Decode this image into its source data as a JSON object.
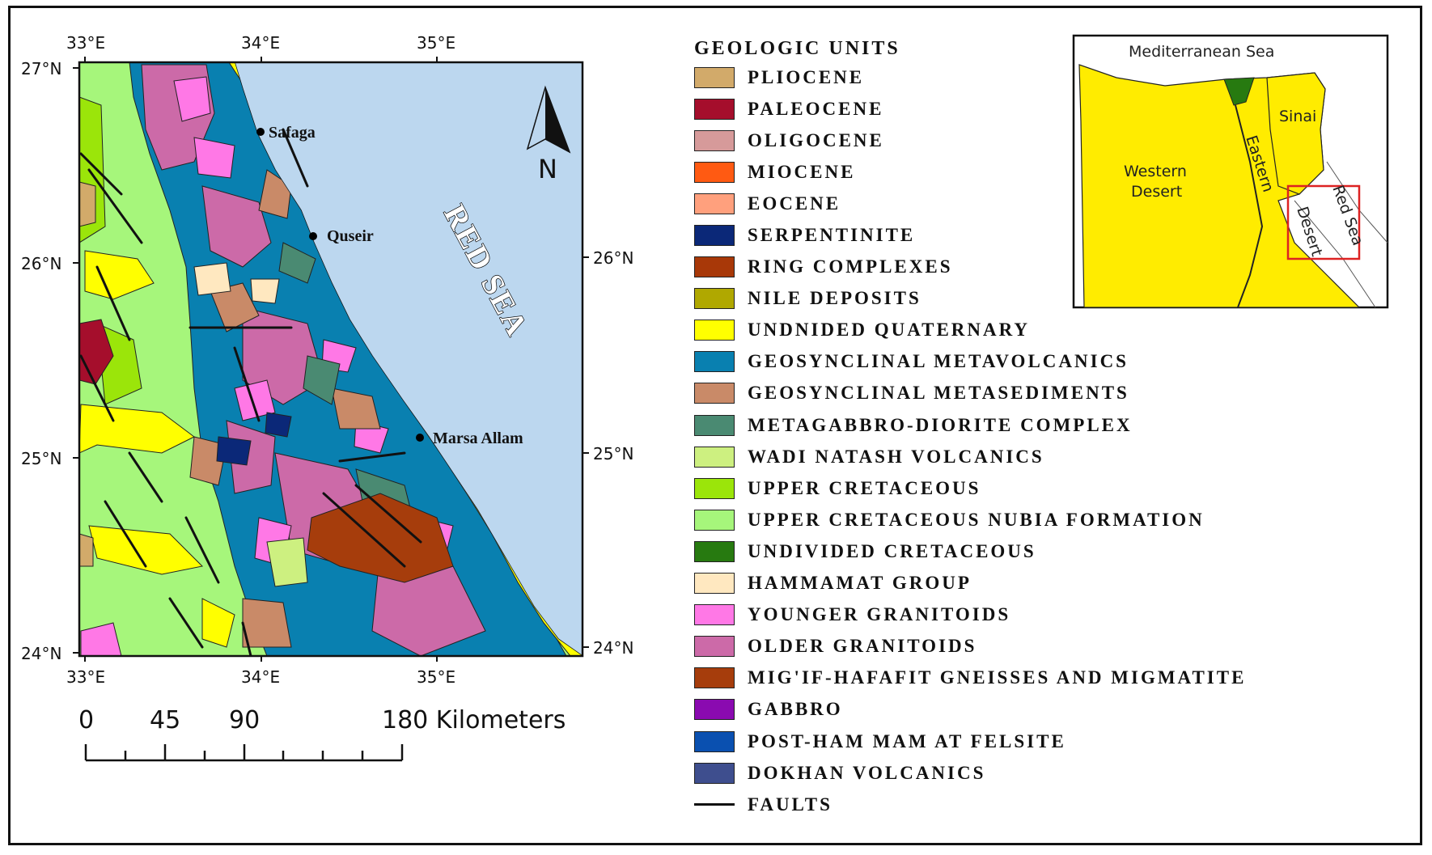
{
  "map": {
    "lon_top": [
      "33°E",
      "34°E",
      "35°E"
    ],
    "lon_bottom": [
      "33°E",
      "34°E",
      "35°E"
    ],
    "lat_left": [
      "27°N",
      "26°N",
      "25°N",
      "24°N"
    ],
    "lat_right": [
      "26°N",
      "25°N",
      "24°N"
    ],
    "places": [
      "Safaga",
      "Quseir",
      "Marsa Allam"
    ],
    "sea_label": "RED SEA",
    "north_label": "N",
    "scale_ticks": [
      "0",
      "45",
      "90",
      "180 Kilometers"
    ]
  },
  "legend": {
    "title": "GEOLOGIC UNITS",
    "items": [
      {
        "label": "PLIOCENE",
        "color": "#d2aa6a"
      },
      {
        "label": "PALEOCENE",
        "color": "#a50e2c"
      },
      {
        "label": "OLIGOCENE",
        "color": "#d69a9a"
      },
      {
        "label": "MIOCENE",
        "color": "#ff5a12"
      },
      {
        "label": "EOCENE",
        "color": "#ffa07d"
      },
      {
        "label": "SERPENTINITE",
        "color": "#0b2878"
      },
      {
        "label": "RING COMPLEXES",
        "color": "#a83808"
      },
      {
        "label": "NILE DEPOSITS",
        "color": "#b0a800"
      },
      {
        "label": "UNDNIDED QUATERNARY",
        "color": "#ffff00"
      },
      {
        "label": "GEOSYNCLINAL METAVOLCANICS",
        "color": "#0980b0"
      },
      {
        "label": "GEOSYNCLINAL METASEDIMENTS",
        "color": "#c98a68"
      },
      {
        "label": "METAGABBRO-DIORITE COMPLEX",
        "color": "#4a8a72"
      },
      {
        "label": "WADI NATASH VOLCANICS",
        "color": "#cdf080"
      },
      {
        "label": "UPPER CRETACEOUS",
        "color": "#9be50a"
      },
      {
        "label": "UPPER CRETACEOUS NUBIA FORMATION",
        "color": "#a6f67b"
      },
      {
        "label": "UNDIVIDED CRETACEOUS",
        "color": "#277a10"
      },
      {
        "label": "HAMMAMAT GROUP",
        "color": "#ffe8c0"
      },
      {
        "label": "YOUNGER GRANITOIDS",
        "color": "#ff78e6"
      },
      {
        "label": "OLDER GRANITOIDS",
        "color": "#cc6aa8"
      },
      {
        "label": "MIG'IF-HAFAFIT GNEISSES AND MIGMATITE",
        "color": "#a63d0c"
      },
      {
        "label": "GABBRO",
        "color": "#8a0ab0"
      },
      {
        "label": "POST-HAM MAM AT FELSITE",
        "color": "#0a50b0"
      },
      {
        "label": "DOKHAN VOLCANICS",
        "color": "#3e4e8e"
      }
    ],
    "faults_label": "FAULTS"
  },
  "inset": {
    "sea_top": "Mediterranean Sea",
    "sinai": "Sinai",
    "western": [
      "Western",
      "Desert"
    ],
    "eastern_a": "Eastern",
    "eastern_b": "Desert",
    "red_sea": "Red Sea"
  }
}
